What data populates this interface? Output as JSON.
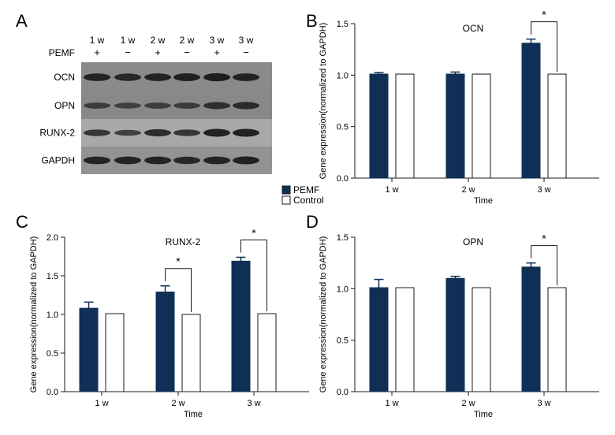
{
  "panel_letters": [
    "A",
    "B",
    "C",
    "D"
  ],
  "blot": {
    "lane_times": [
      "1 w",
      "1 w",
      "2 w",
      "2 w",
      "3 w",
      "3 w"
    ],
    "lane_signs": [
      "+",
      "−",
      "+",
      "−",
      "+",
      "−"
    ],
    "pemf_label": "PEMF",
    "bands": [
      {
        "label": "OCN",
        "intensity": [
          0.85,
          0.8,
          0.85,
          0.9,
          0.95,
          0.85
        ],
        "bg": "#8a8a8a"
      },
      {
        "label": "OPN",
        "intensity": [
          0.5,
          0.45,
          0.5,
          0.5,
          0.7,
          0.75
        ],
        "bg": "#888888"
      },
      {
        "label": "RUNX-2",
        "intensity": [
          0.6,
          0.45,
          0.75,
          0.6,
          0.9,
          0.9
        ],
        "bg": "#a8a8a8"
      },
      {
        "label": "GAPDH",
        "intensity": [
          0.85,
          0.85,
          0.85,
          0.8,
          0.85,
          0.9
        ],
        "bg": "#939393"
      }
    ]
  },
  "legend": {
    "items": [
      {
        "label": "PEMF",
        "color": "#0f2f57"
      },
      {
        "label": "Control",
        "color": "#ffffff"
      }
    ]
  },
  "chart_data": [
    {
      "id": "B",
      "type": "bar",
      "title": "OCN",
      "categories": [
        "1 w",
        "2 w",
        "3 w"
      ],
      "series": [
        {
          "name": "PEMF",
          "values": [
            1.01,
            1.01,
            1.31
          ],
          "errors": [
            0.015,
            0.02,
            0.04
          ]
        },
        {
          "name": "Control",
          "values": [
            1.01,
            1.01,
            1.01
          ],
          "errors": [
            0,
            0,
            0
          ]
        }
      ],
      "xlabel": "Time",
      "ylabel": "Gene expression(normalized to GAPDH)",
      "ylim": [
        0,
        1.5
      ],
      "yticks": [
        0.0,
        0.5,
        1.0,
        1.5
      ],
      "significance": [
        {
          "category_index": 2,
          "label": "*"
        }
      ]
    },
    {
      "id": "C",
      "type": "bar",
      "title": "RUNX-2",
      "categories": [
        "1 w",
        "2 w",
        "3 w"
      ],
      "series": [
        {
          "name": "PEMF",
          "values": [
            1.08,
            1.29,
            1.69
          ],
          "errors": [
            0.08,
            0.08,
            0.05
          ]
        },
        {
          "name": "Control",
          "values": [
            1.01,
            1.0,
            1.01
          ],
          "errors": [
            0,
            0,
            0
          ]
        }
      ],
      "xlabel": "Time",
      "ylabel": "Gene expression(normalized to GAPDH)",
      "ylim": [
        0,
        2.0
      ],
      "yticks": [
        0.0,
        0.5,
        1.0,
        1.5,
        2.0
      ],
      "significance": [
        {
          "category_index": 1,
          "label": "*"
        },
        {
          "category_index": 2,
          "label": "*"
        }
      ]
    },
    {
      "id": "D",
      "type": "bar",
      "title": "OPN",
      "categories": [
        "1 w",
        "2 w",
        "3 w"
      ],
      "series": [
        {
          "name": "PEMF",
          "values": [
            1.01,
            1.1,
            1.21
          ],
          "errors": [
            0.08,
            0.02,
            0.04
          ]
        },
        {
          "name": "Control",
          "values": [
            1.01,
            1.01,
            1.01
          ],
          "errors": [
            0,
            0,
            0
          ]
        }
      ],
      "xlabel": "Time",
      "ylabel": "Gene expression(normalized to GAPDH)",
      "ylim": [
        0,
        1.5
      ],
      "yticks": [
        0.0,
        0.5,
        1.0,
        1.5
      ],
      "significance": [
        {
          "category_index": 2,
          "label": "*"
        }
      ]
    }
  ]
}
